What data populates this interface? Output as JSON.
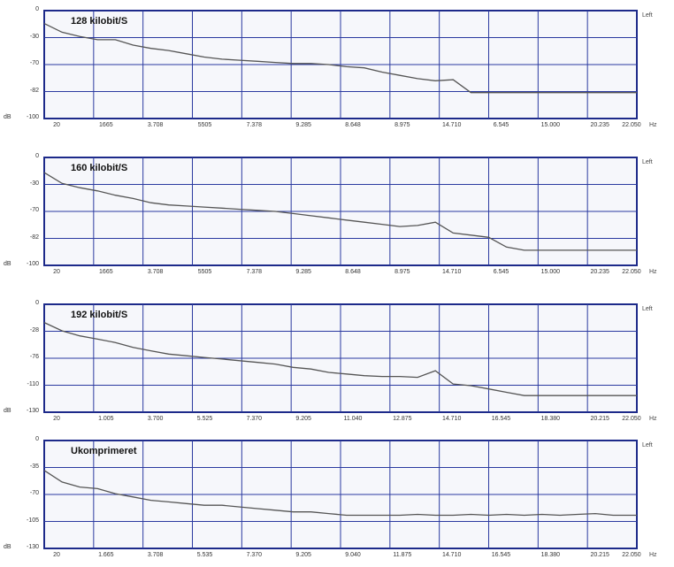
{
  "chart_data": [
    {
      "type": "line",
      "title": "128 kilobit/S",
      "channel_label": "Left",
      "y_unit": "dB",
      "x_unit": "Hz",
      "y_ticks": [
        "0",
        "-30",
        "-70",
        "-82",
        "-100"
      ],
      "x_ticks": [
        "20",
        "1665",
        "3.708",
        "5505",
        "7.378",
        "9.285",
        "8.648",
        "8.975",
        "14.710",
        "6.545",
        "15.000",
        "20.235",
        "22.050"
      ],
      "ylim": [
        -100,
        0
      ],
      "x": [
        0,
        0.03,
        0.06,
        0.09,
        0.12,
        0.15,
        0.18,
        0.21,
        0.24,
        0.27,
        0.3,
        0.33,
        0.36,
        0.39,
        0.42,
        0.45,
        0.48,
        0.51,
        0.54,
        0.57,
        0.6,
        0.63,
        0.66,
        0.69,
        0.72,
        0.75,
        0.78,
        0.81,
        0.84,
        0.87,
        0.9,
        0.93,
        0.96,
        1.0
      ],
      "y": [
        -12,
        -20,
        -24,
        -27,
        -27,
        -32,
        -35,
        -37,
        -40,
        -43,
        -45,
        -46,
        -47,
        -48,
        -49,
        -49,
        -50,
        -52,
        -53,
        -57,
        -60,
        -63,
        -65,
        -64,
        -76,
        -76,
        -76,
        -76,
        -76,
        -76,
        -76,
        -76,
        -76,
        -76
      ]
    },
    {
      "type": "line",
      "title": "160 kilobit/S",
      "channel_label": "Left",
      "y_unit": "dB",
      "x_unit": "Hz",
      "y_ticks": [
        "0",
        "-30",
        "-70",
        "-82",
        "-100"
      ],
      "x_ticks": [
        "20",
        "1665",
        "3.708",
        "5505",
        "7.378",
        "9.285",
        "8.648",
        "8.975",
        "14.710",
        "6.545",
        "15.000",
        "20.235",
        "22.050"
      ],
      "ylim": [
        -100,
        0
      ],
      "x": [
        0,
        0.03,
        0.06,
        0.09,
        0.12,
        0.15,
        0.18,
        0.21,
        0.24,
        0.27,
        0.3,
        0.33,
        0.36,
        0.39,
        0.42,
        0.45,
        0.48,
        0.51,
        0.54,
        0.57,
        0.6,
        0.63,
        0.66,
        0.69,
        0.72,
        0.75,
        0.78,
        0.81,
        0.84,
        0.87,
        0.9,
        0.93,
        0.96,
        1.0
      ],
      "y": [
        -14,
        -24,
        -28,
        -31,
        -35,
        -38,
        -42,
        -44,
        -45,
        -46,
        -47,
        -48,
        -49,
        -50,
        -52,
        -54,
        -56,
        -58,
        -60,
        -62,
        -64,
        -63,
        -60,
        -70,
        -72,
        -74,
        -83,
        -86,
        -86,
        -86,
        -86,
        -86,
        -86,
        -86
      ]
    },
    {
      "type": "line",
      "title": "192 kilobit/S",
      "channel_label": "Left",
      "y_unit": "dB",
      "x_unit": "Hz",
      "y_ticks": [
        "0",
        "-28",
        "-76",
        "-110",
        "-130"
      ],
      "x_ticks": [
        "20",
        "1.005",
        "3.700",
        "5.525",
        "7.370",
        "9.205",
        "11.040",
        "12.875",
        "14.710",
        "16.545",
        "18.380",
        "20.215",
        "22.050"
      ],
      "ylim": [
        -130,
        0
      ],
      "x": [
        0,
        0.03,
        0.06,
        0.09,
        0.12,
        0.15,
        0.18,
        0.21,
        0.24,
        0.27,
        0.3,
        0.33,
        0.36,
        0.39,
        0.42,
        0.45,
        0.48,
        0.51,
        0.54,
        0.57,
        0.6,
        0.63,
        0.66,
        0.69,
        0.72,
        0.75,
        0.78,
        0.81,
        0.84,
        0.87,
        0.9,
        0.93,
        0.96,
        1.0
      ],
      "y": [
        -22,
        -32,
        -38,
        -42,
        -46,
        -52,
        -56,
        -60,
        -62,
        -64,
        -66,
        -68,
        -70,
        -72,
        -76,
        -78,
        -82,
        -84,
        -86,
        -87,
        -87,
        -88,
        -80,
        -96,
        -98,
        -102,
        -106,
        -110,
        -110,
        -110,
        -110,
        -110,
        -110,
        -110
      ]
    },
    {
      "type": "line",
      "title": "Ukomprimeret",
      "channel_label": "Left",
      "y_unit": "dB",
      "x_unit": "Hz",
      "y_ticks": [
        "0",
        "-35",
        "-70",
        "-105",
        "-130"
      ],
      "x_ticks": [
        "20",
        "1.665",
        "3.708",
        "5.535",
        "7.370",
        "9.205",
        "9.040",
        "11.875",
        "14.710",
        "16.545",
        "18.380",
        "20.215",
        "22.050"
      ],
      "ylim": [
        -130,
        0
      ],
      "x": [
        0,
        0.03,
        0.06,
        0.09,
        0.12,
        0.15,
        0.18,
        0.21,
        0.24,
        0.27,
        0.3,
        0.33,
        0.36,
        0.39,
        0.42,
        0.45,
        0.48,
        0.51,
        0.54,
        0.57,
        0.6,
        0.63,
        0.66,
        0.69,
        0.72,
        0.75,
        0.78,
        0.81,
        0.84,
        0.87,
        0.9,
        0.93,
        0.96,
        1.0
      ],
      "y": [
        -36,
        -50,
        -56,
        -58,
        -64,
        -68,
        -72,
        -74,
        -76,
        -78,
        -78,
        -80,
        -82,
        -84,
        -86,
        -86,
        -88,
        -90,
        -90,
        -90,
        -90,
        -89,
        -90,
        -90,
        -89,
        -90,
        -89,
        -90,
        -89,
        -90,
        -89,
        -88,
        -90,
        -90
      ]
    }
  ]
}
